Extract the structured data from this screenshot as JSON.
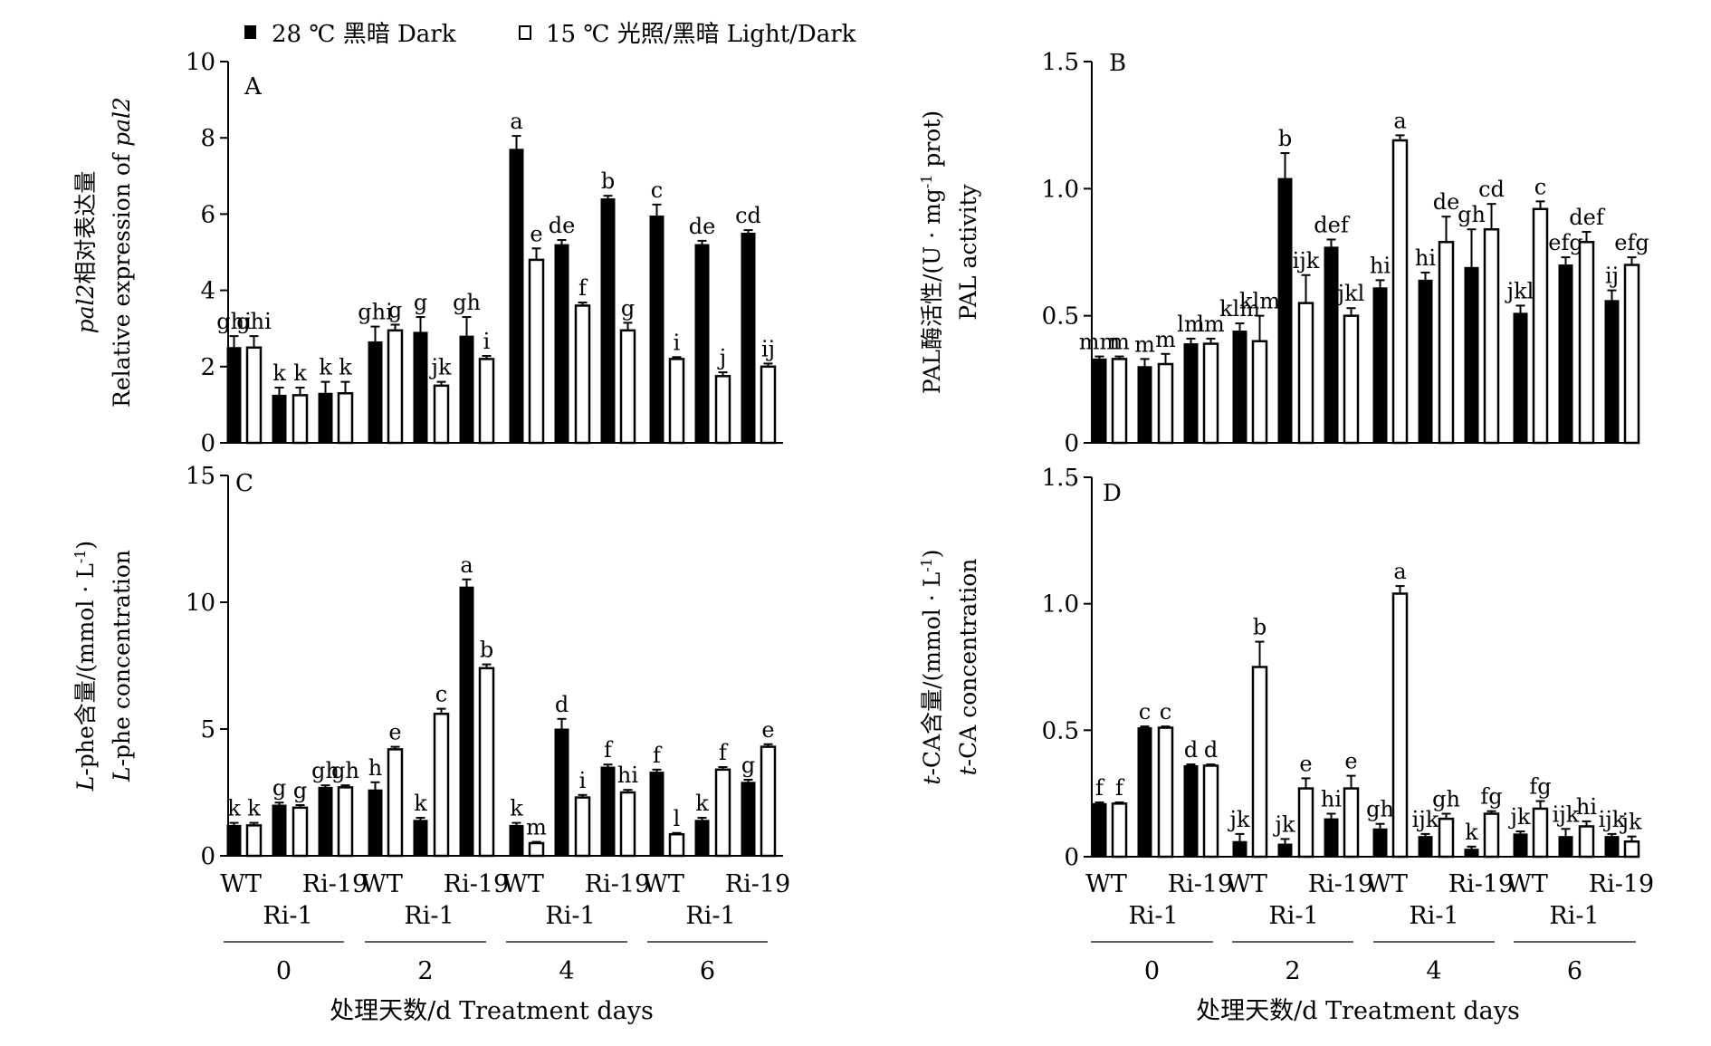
{
  "legend": {
    "dark": "28 ℃  黑暗 Dark",
    "light": "15 ℃  光照/黑暗 Light/Dark"
  },
  "x_axis": {
    "group_labels": [
      "0",
      "2",
      "4",
      "6"
    ],
    "genotype_labels": [
      "WT",
      "Ri-1",
      "Ri-19"
    ],
    "title": "处理天数/d Treatment days"
  },
  "chart_data": [
    {
      "panel": "A",
      "type": "bar",
      "ylabel_cn_italic": "pal2",
      "ylabel_cn": "相对表达量",
      "ylabel_en": "Relative expression of ",
      "ylabel_en_italic": "pal2",
      "ylim": [
        0,
        10
      ],
      "yticks": [
        "0",
        "2",
        "4",
        "6",
        "8",
        "10"
      ],
      "categories": [
        "0",
        "2",
        "4",
        "6"
      ],
      "genotypes": [
        "WT",
        "Ri-1",
        "Ri-19"
      ],
      "series": [
        {
          "name": "28 ℃ 黑暗 Dark",
          "values": [
            [
              2.5,
              1.25,
              1.3
            ],
            [
              2.65,
              2.9,
              2.8
            ],
            [
              7.7,
              5.2,
              6.4
            ],
            [
              5.95,
              5.2,
              5.5
            ]
          ],
          "errors": [
            [
              0.3,
              0.2,
              0.3
            ],
            [
              0.4,
              0.4,
              0.5
            ],
            [
              0.35,
              0.12,
              0.08
            ],
            [
              0.3,
              0.1,
              0.08
            ]
          ],
          "letters": [
            [
              "ghi",
              "k",
              "k"
            ],
            [
              "ghi",
              "g",
              "gh"
            ],
            [
              "a",
              "de",
              "b"
            ],
            [
              "c",
              "de",
              "cd"
            ]
          ]
        },
        {
          "name": "15 ℃ 光照/黑暗 Light/Dark",
          "values": [
            [
              2.5,
              1.25,
              1.3
            ],
            [
              2.95,
              1.5,
              2.2
            ],
            [
              4.8,
              3.6,
              2.95
            ],
            [
              2.2,
              1.75,
              2.0
            ]
          ],
          "errors": [
            [
              0.3,
              0.2,
              0.3
            ],
            [
              0.15,
              0.1,
              0.08
            ],
            [
              0.3,
              0.08,
              0.2
            ],
            [
              0.05,
              0.1,
              0.08
            ]
          ],
          "letters": [
            [
              "ghi",
              "k",
              "k"
            ],
            [
              "g",
              "jk",
              "i"
            ],
            [
              "e",
              "f",
              "g"
            ],
            [
              "i",
              "j",
              "ij"
            ]
          ]
        }
      ]
    },
    {
      "panel": "B",
      "type": "bar",
      "ylabel_cn": "PAL酶活性/(U · mg",
      "ylabel_sup": "-1",
      "ylabel_cn_tail": " prot)",
      "ylabel_en": "PAL activity",
      "ylim": [
        0,
        1.5
      ],
      "yticks": [
        "0",
        "0.5",
        "1.0",
        "1.5"
      ],
      "categories": [
        "0",
        "2",
        "4",
        "6"
      ],
      "genotypes": [
        "WT",
        "Ri-1",
        "Ri-19"
      ],
      "series": [
        {
          "name": "28 ℃ 黑暗 Dark",
          "values": [
            [
              0.33,
              0.3,
              0.39
            ],
            [
              0.44,
              1.04,
              0.77
            ],
            [
              0.61,
              0.64,
              0.69
            ],
            [
              0.51,
              0.7,
              0.56
            ]
          ],
          "errors": [
            [
              0.01,
              0.03,
              0.02
            ],
            [
              0.03,
              0.1,
              0.03
            ],
            [
              0.03,
              0.03,
              0.15
            ],
            [
              0.03,
              0.03,
              0.04
            ]
          ],
          "letters": [
            [
              "mm",
              "m",
              "lm"
            ],
            [
              "klm",
              "b",
              "def"
            ],
            [
              "hi",
              "hi",
              "gh"
            ],
            [
              "jkl",
              "efg",
              "ij"
            ]
          ]
        },
        {
          "name": "15 ℃ 光照/黑暗 Light/Dark",
          "values": [
            [
              0.33,
              0.31,
              0.39
            ],
            [
              0.4,
              0.55,
              0.5
            ],
            [
              1.19,
              0.79,
              0.84
            ],
            [
              0.92,
              0.79,
              0.7
            ]
          ],
          "errors": [
            [
              0.01,
              0.04,
              0.02
            ],
            [
              0.1,
              0.11,
              0.03
            ],
            [
              0.02,
              0.1,
              0.1
            ],
            [
              0.03,
              0.04,
              0.03
            ]
          ],
          "letters": [
            [
              "m",
              "m",
              "lm"
            ],
            [
              "klm",
              "ijk",
              "jkl"
            ],
            [
              "a",
              "de",
              "cd"
            ],
            [
              "c",
              "def",
              "efg"
            ]
          ]
        }
      ]
    },
    {
      "panel": "C",
      "type": "bar",
      "ylabel_cn_italic": "L",
      "ylabel_cn": "-phe含量/(mmol · L",
      "ylabel_sup": "-1",
      "ylabel_cn_tail": ")",
      "ylabel_en_italic": "L",
      "ylabel_en": "-phe concentration",
      "ylim": [
        0,
        15
      ],
      "yticks": [
        "0",
        "5",
        "10",
        "15"
      ],
      "categories": [
        "0",
        "2",
        "4",
        "6"
      ],
      "genotypes": [
        "WT",
        "Ri-1",
        "Ri-19"
      ],
      "series": [
        {
          "name": "28 ℃ 黑暗 Dark",
          "values": [
            [
              1.2,
              2.0,
              2.7
            ],
            [
              2.6,
              1.4,
              10.6
            ],
            [
              1.2,
              5.0,
              3.5
            ],
            [
              3.3,
              1.4,
              2.9
            ]
          ],
          "errors": [
            [
              0.1,
              0.1,
              0.08
            ],
            [
              0.3,
              0.1,
              0.3
            ],
            [
              0.1,
              0.4,
              0.1
            ],
            [
              0.1,
              0.1,
              0.1
            ]
          ],
          "letters": [
            [
              "k",
              "g",
              "gh"
            ],
            [
              "h",
              "k",
              "a"
            ],
            [
              "k",
              "d",
              "f"
            ],
            [
              "f",
              "k",
              "g"
            ]
          ]
        },
        {
          "name": "15 ℃ 光照/黑暗 Light/Dark",
          "values": [
            [
              1.2,
              1.9,
              2.7
            ],
            [
              4.2,
              5.6,
              7.4
            ],
            [
              0.5,
              2.3,
              2.5
            ],
            [
              0.85,
              3.4,
              4.3
            ]
          ],
          "errors": [
            [
              0.1,
              0.1,
              0.08
            ],
            [
              0.1,
              0.2,
              0.15
            ],
            [
              0.05,
              0.1,
              0.1
            ],
            [
              0.05,
              0.1,
              0.1
            ]
          ],
          "letters": [
            [
              "k",
              "g",
              "gh"
            ],
            [
              "e",
              "c",
              "b"
            ],
            [
              "m",
              "i",
              "hi"
            ],
            [
              "l",
              "f",
              "e"
            ]
          ]
        }
      ]
    },
    {
      "panel": "D",
      "type": "bar",
      "ylabel_cn_italic": "t",
      "ylabel_cn": "-CA含量/(mmol · L",
      "ylabel_sup": "-1",
      "ylabel_cn_tail": ")",
      "ylabel_en_italic": "t",
      "ylabel_en": "-CA concentration",
      "ylim": [
        0,
        1.5
      ],
      "yticks": [
        "0",
        "0.5",
        "1.0",
        "1.5"
      ],
      "categories": [
        "0",
        "2",
        "4",
        "6"
      ],
      "genotypes": [
        "WT",
        "Ri-1",
        "Ri-19"
      ],
      "series": [
        {
          "name": "28 ℃ 黑暗 Dark",
          "values": [
            [
              0.21,
              0.51,
              0.36
            ],
            [
              0.06,
              0.05,
              0.15
            ],
            [
              0.11,
              0.08,
              0.03
            ],
            [
              0.09,
              0.08,
              0.08
            ]
          ],
          "errors": [
            [
              0.005,
              0.005,
              0.005
            ],
            [
              0.03,
              0.02,
              0.02
            ],
            [
              0.02,
              0.01,
              0.01
            ],
            [
              0.01,
              0.03,
              0.01
            ]
          ],
          "letters": [
            [
              "f",
              "c",
              "d"
            ],
            [
              "jk",
              "jk",
              "hi"
            ],
            [
              "gh",
              "ijk",
              "k"
            ],
            [
              "jk",
              "ijk",
              "ijk"
            ]
          ]
        },
        {
          "name": "15 ℃ 光照/黑暗 Light/Dark",
          "values": [
            [
              0.21,
              0.51,
              0.36
            ],
            [
              0.75,
              0.27,
              0.27
            ],
            [
              1.04,
              0.15,
              0.17
            ],
            [
              0.19,
              0.12,
              0.06
            ]
          ],
          "errors": [
            [
              0.005,
              0.005,
              0.005
            ],
            [
              0.1,
              0.04,
              0.05
            ],
            [
              0.03,
              0.02,
              0.01
            ],
            [
              0.03,
              0.02,
              0.02
            ]
          ],
          "letters": [
            [
              "f",
              "c",
              "d"
            ],
            [
              "b",
              "e",
              "e"
            ],
            [
              "a",
              "gh",
              "fg"
            ],
            [
              "fg",
              "hi",
              "jk"
            ]
          ]
        }
      ]
    }
  ]
}
